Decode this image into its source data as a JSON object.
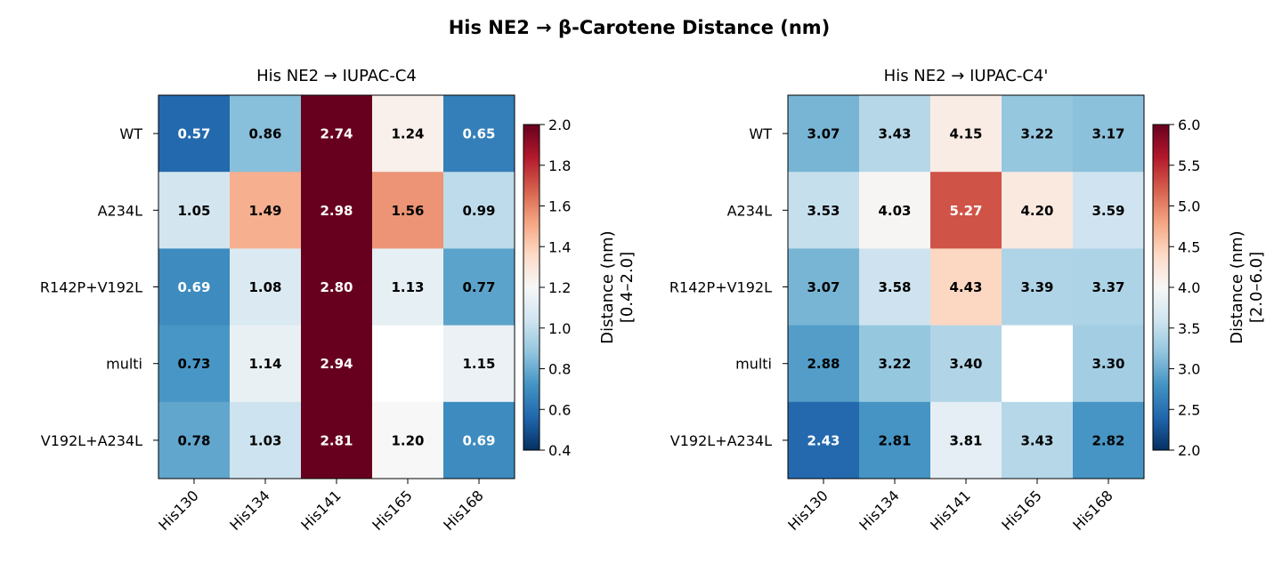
{
  "title": "His NE2 → β-Carotene Distance (nm)",
  "colormap": "RdBu_r",
  "missing_color": "#ffffff",
  "chart_data": [
    {
      "type": "heatmap",
      "title": "His NE2 → IUPAC-C4",
      "rows": [
        "WT",
        "A234L",
        "R142P+V192L",
        "multi",
        "V192L+A234L"
      ],
      "columns": [
        "His130",
        "His134",
        "His141",
        "His165",
        "His168"
      ],
      "values": [
        [
          0.57,
          0.86,
          2.74,
          1.24,
          0.65
        ],
        [
          1.05,
          1.49,
          2.98,
          1.56,
          0.99
        ],
        [
          0.69,
          1.08,
          2.8,
          1.13,
          0.77
        ],
        [
          0.73,
          1.14,
          2.94,
          null,
          1.15
        ],
        [
          0.78,
          1.03,
          2.81,
          1.2,
          0.69
        ]
      ],
      "value_labels": [
        [
          "0.57",
          "0.86",
          "2.74",
          "1.24",
          "0.65"
        ],
        [
          "1.05",
          "1.49",
          "2.98",
          "1.56",
          "0.99"
        ],
        [
          "0.69",
          "1.08",
          "2.80",
          "1.13",
          "0.77"
        ],
        [
          "0.73",
          "1.14",
          "2.94",
          "",
          "1.15"
        ],
        [
          "0.78",
          "1.03",
          "2.81",
          "1.20",
          "0.69"
        ]
      ],
      "vmin": 0.4,
      "vmax": 2.0,
      "colorbar": {
        "label_line1": "Distance (nm)",
        "label_line2": "[0.4–2.0]",
        "ticks": [
          "0.4",
          "0.6",
          "0.8",
          "1.0",
          "1.2",
          "1.4",
          "1.6",
          "1.8",
          "2.0"
        ]
      }
    },
    {
      "type": "heatmap",
      "title": "His NE2 → IUPAC-C4'",
      "rows": [
        "WT",
        "A234L",
        "R142P+V192L",
        "multi",
        "V192L+A234L"
      ],
      "columns": [
        "His130",
        "His134",
        "His141",
        "His165",
        "His168"
      ],
      "values": [
        [
          3.07,
          3.43,
          4.15,
          3.22,
          3.17
        ],
        [
          3.53,
          4.03,
          5.27,
          4.2,
          3.59
        ],
        [
          3.07,
          3.58,
          4.43,
          3.39,
          3.37
        ],
        [
          2.88,
          3.22,
          3.4,
          null,
          3.3
        ],
        [
          2.43,
          2.81,
          3.81,
          3.43,
          2.82
        ]
      ],
      "value_labels": [
        [
          "3.07",
          "3.43",
          "4.15",
          "3.22",
          "3.17"
        ],
        [
          "3.53",
          "4.03",
          "5.27",
          "4.20",
          "3.59"
        ],
        [
          "3.07",
          "3.58",
          "4.43",
          "3.39",
          "3.37"
        ],
        [
          "2.88",
          "3.22",
          "3.40",
          "",
          "3.30"
        ],
        [
          "2.43",
          "2.81",
          "3.81",
          "3.43",
          "2.82"
        ]
      ],
      "vmin": 2.0,
      "vmax": 6.0,
      "colorbar": {
        "label_line1": "Distance (nm)",
        "label_line2": "[2.0–6.0]",
        "ticks": [
          "2.0",
          "2.5",
          "3.0",
          "3.5",
          "4.0",
          "4.5",
          "5.0",
          "5.5",
          "6.0"
        ]
      }
    }
  ]
}
